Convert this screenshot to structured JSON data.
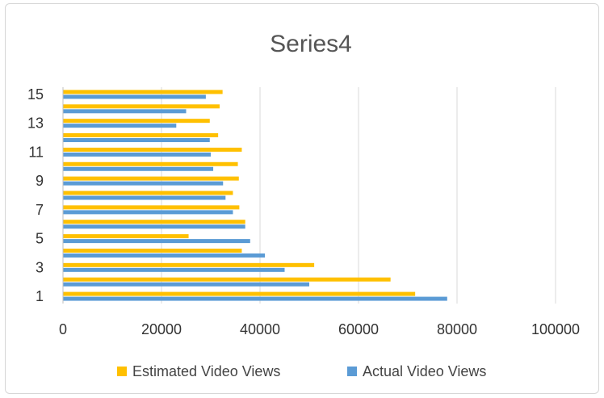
{
  "chart_data": {
    "type": "bar",
    "orientation": "horizontal",
    "title": "Series4",
    "xlabel": "",
    "ylabel": "",
    "categories": [
      1,
      2,
      3,
      4,
      5,
      6,
      7,
      8,
      9,
      10,
      11,
      12,
      13,
      14,
      15
    ],
    "y_tick_labels": [
      "1",
      "3",
      "5",
      "7",
      "9",
      "11",
      "13",
      "15"
    ],
    "x_tick_labels": [
      "0",
      "20000",
      "40000",
      "60000",
      "80000",
      "100000"
    ],
    "xlim": [
      0,
      100000
    ],
    "grid": "vertical",
    "legend_position": "bottom",
    "series": [
      {
        "name": "Actual Video Views",
        "color": "#5b9bd5",
        "values": [
          78000,
          50000,
          45000,
          41000,
          38000,
          37000,
          34500,
          33000,
          32500,
          30500,
          30000,
          29800,
          23000,
          25000,
          29000
        ]
      },
      {
        "name": "Estimated Video Views",
        "color": "#ffc000",
        "values": [
          71500,
          66500,
          51000,
          36300,
          25500,
          37000,
          35800,
          34500,
          35700,
          35500,
          36300,
          31500,
          29800,
          31800,
          32400
        ]
      }
    ]
  }
}
